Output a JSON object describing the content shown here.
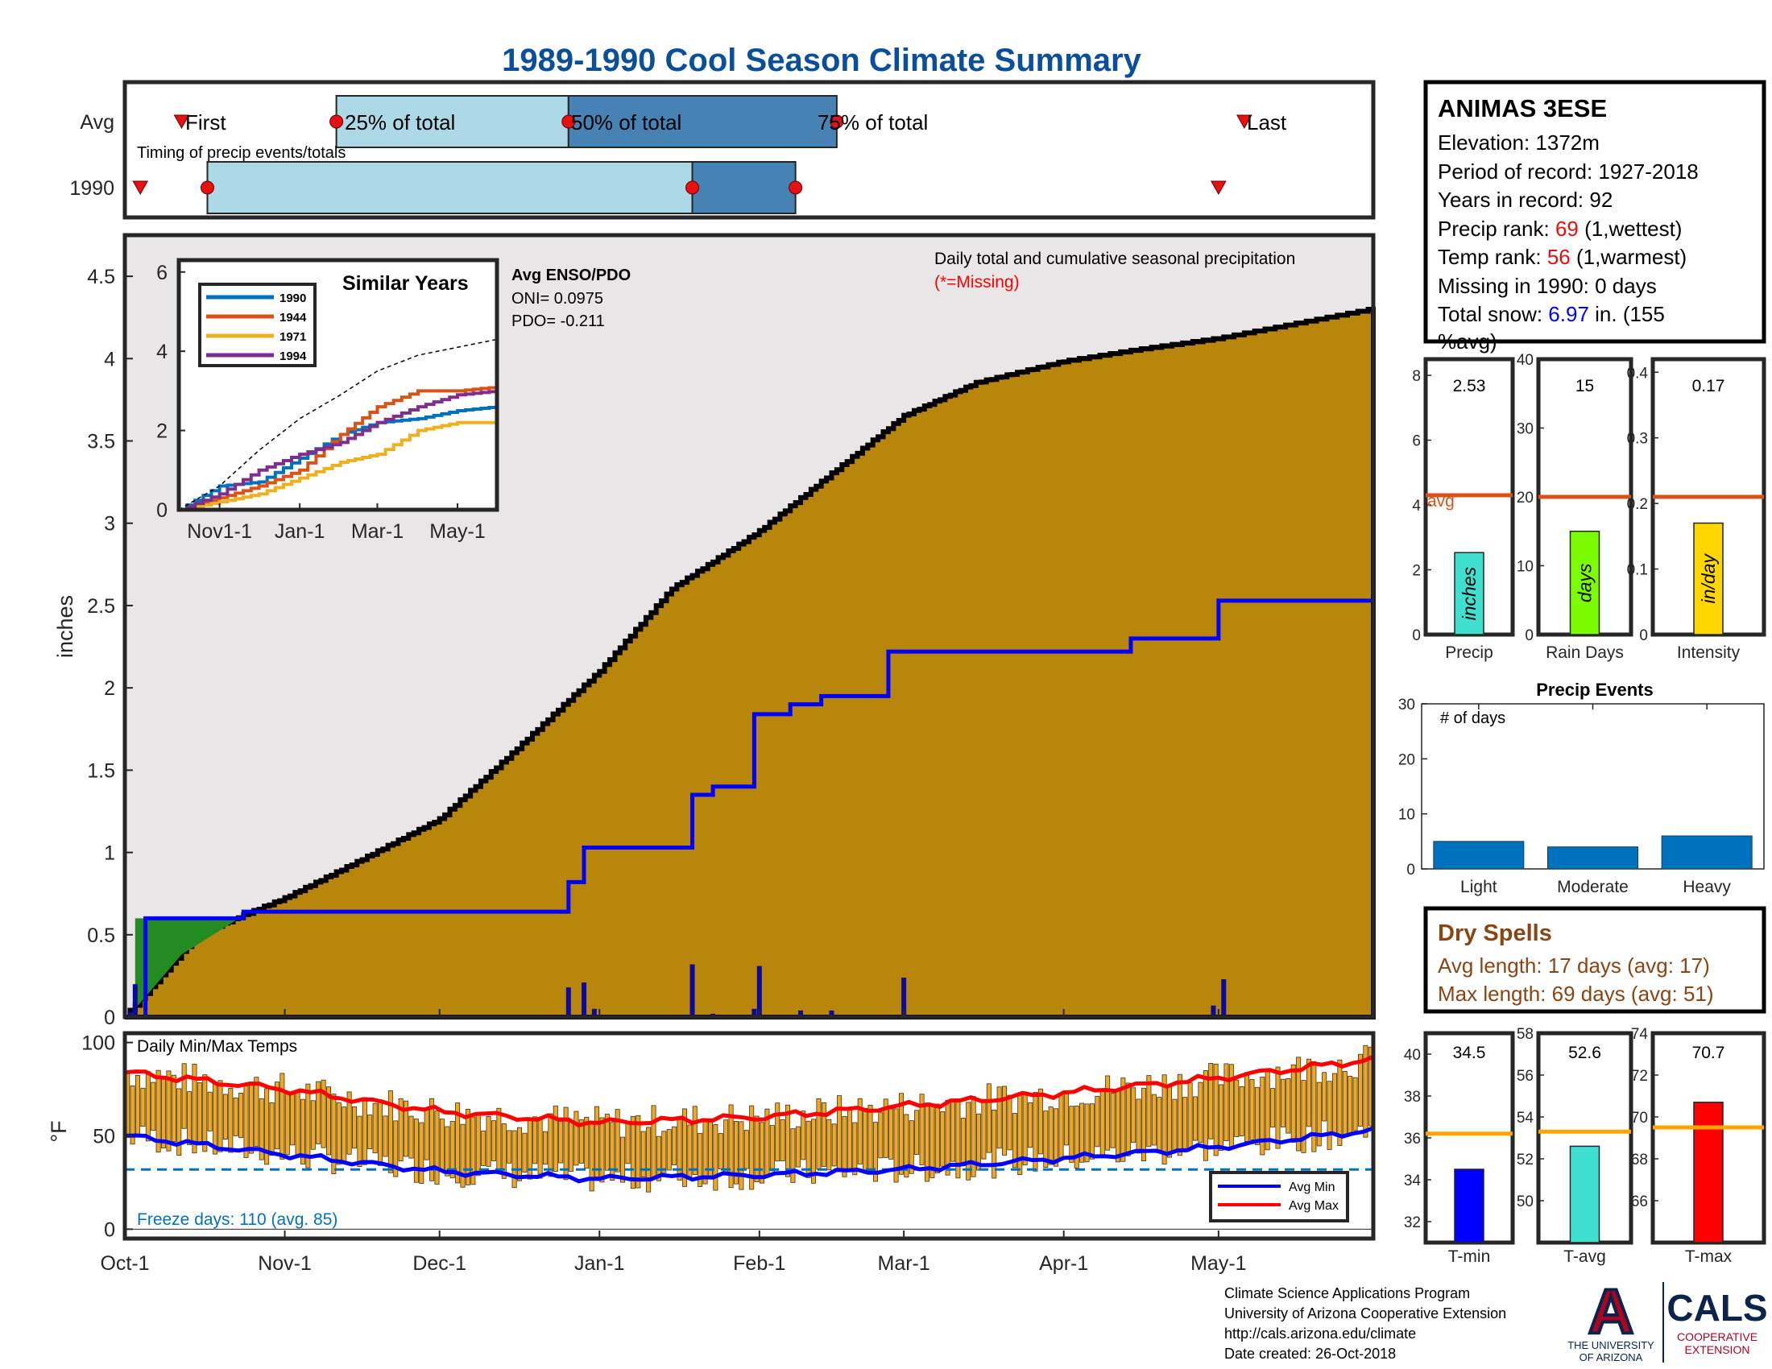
{
  "title": "1989-1990 Cool Season Climate Summary",
  "colors": {
    "title": "#0b4f9c",
    "cumulative_fill": "#b8860b",
    "record_fill": "#e8e6e6",
    "light_blue": "#add8e6",
    "steel_blue": "#4682b4",
    "marker_red": "#e81010",
    "avg_line": "#d95319",
    "temp_bar": "#f3a81c",
    "blue": "#0000ff",
    "red": "#ff0000",
    "event_bar": "#0072bd",
    "dry_spell": "#8b4513",
    "freeze_text": "#0072bd"
  },
  "timing_panel": {
    "row_labels": [
      "Avg",
      "1990"
    ],
    "annotations": [
      "First",
      "25% of total",
      "50% of total",
      "75% of total",
      "Last"
    ],
    "subtitle": "Timing of precip events/totals"
  },
  "station": {
    "name": "ANIMAS 3ESE",
    "elevation": "Elevation: 1372m",
    "period": "Period of record: 1927-2018",
    "years": "Years in record: 92",
    "precip_rank_label": "Precip rank: ",
    "precip_rank": "69",
    "precip_rank_note": " (1,wettest)",
    "temp_rank_label": "Temp rank: ",
    "temp_rank": "56",
    "temp_rank_note": " (1,warmest)",
    "missing": "Missing in 1990: 0 days",
    "snow_label": "Total snow: ",
    "snow_value": "6.97",
    "snow_note": " in. (155",
    "snow_note2": "%avg)"
  },
  "main_plot": {
    "ylabel": "inches",
    "annotation": "Daily total and cumulative seasonal precipitation",
    "missing_note": "(*=Missing)",
    "yticks": [
      "0",
      "0.5",
      "1",
      "1.5",
      "2",
      "2.5",
      "3",
      "3.5",
      "4",
      "4.5"
    ],
    "xticks": [
      "Oct-1",
      "Nov-1",
      "Dec-1",
      "Jan-1",
      "Feb-1",
      "Mar-1",
      "Apr-1",
      "May-1"
    ]
  },
  "inset": {
    "title": "Similar Years",
    "legend": [
      "1990",
      "1944",
      "1971",
      "1994"
    ],
    "yticks": [
      "0",
      "2",
      "4",
      "6"
    ],
    "xticks": [
      "Nov1-1",
      "Jan-1",
      "Mar-1",
      "May-1"
    ]
  },
  "enso": {
    "title": "Avg ENSO/PDO",
    "oni": "ONI= 0.0975",
    "pdo": "PDO= -0.211"
  },
  "temp_plot": {
    "title": "Daily Min/Max Temps",
    "ylabel": "°F",
    "yticks": [
      "0",
      "50",
      "100"
    ],
    "freeze_text": "Freeze days: 110 (avg. 85)",
    "legend": [
      "Avg Min",
      "Avg Max"
    ]
  },
  "summary_bars": {
    "precip": {
      "label": "Precip",
      "value_text": "2.53",
      "unit": "inches",
      "yticks": [
        "0",
        "2",
        "4",
        "6",
        "8"
      ],
      "avg_label": "avg"
    },
    "rain_days": {
      "label": "Rain Days",
      "value_text": "15",
      "unit": "days",
      "yticks": [
        "0",
        "10",
        "20",
        "30",
        "40"
      ]
    },
    "intensity": {
      "label": "Intensity",
      "value_text": "0.17",
      "unit": "in/day",
      "yticks": [
        "0",
        "0.1",
        "0.2",
        "0.3",
        "0.4"
      ]
    }
  },
  "precip_events": {
    "title": "Precip Events",
    "note": "# of days",
    "categories": [
      "Light",
      "Moderate",
      "Heavy"
    ],
    "yticks": [
      "0",
      "10",
      "20",
      "30"
    ]
  },
  "dry_spells": {
    "title": "Dry Spells",
    "avg_length": "Avg length: 17 days (avg: 17)",
    "max_length": "Max length: 69 days (avg: 51)"
  },
  "temp_summary": {
    "tmin": {
      "label": "T-min",
      "value_text": "34.5",
      "yticks": [
        "32",
        "34",
        "36",
        "38",
        "40"
      ]
    },
    "tavg": {
      "label": "T-avg",
      "value_text": "52.6",
      "yticks": [
        "50",
        "52",
        "54",
        "56",
        "58"
      ]
    },
    "tmax": {
      "label": "T-max",
      "value_text": "70.7",
      "yticks": [
        "66",
        "68",
        "70",
        "72",
        "74"
      ]
    }
  },
  "footer": {
    "line1": "Climate Science Applications Program",
    "line2": "University of Arizona Cooperative Extension",
    "line3": "http://cals.arizona.edu/climate",
    "line4": " Date created: 26-Oct-2018"
  },
  "logos": {
    "ua_letter": "A",
    "ua_line1": "THE UNIVERSITY",
    "ua_line2": "OF ARIZONA",
    "cals": "CALS",
    "cals_line1": "COOPERATIVE",
    "cals_line2": "EXTENSION"
  },
  "chart_data": [
    {
      "type": "area",
      "title": "Daily total and cumulative seasonal precipitation",
      "ylabel": "inches",
      "ylim": [
        0,
        4.75
      ],
      "x_range": [
        "Oct-1",
        "May-31"
      ],
      "series": [
        {
          "name": "",
          "x": [
            "Oct-1",
            "Oct-15",
            "Nov-1",
            "Nov-15",
            "Dec-1",
            "Dec-15",
            "Jan-1",
            "Jan-15",
            "Feb-1",
            "Feb-15",
            "Mar-1",
            "Mar-15",
            "Apr-1",
            "Apr-15",
            "May-1",
            "May-31"
          ],
          "y": [
            0.0,
            0.5,
            0.72,
            0.94,
            1.2,
            1.6,
            2.1,
            2.6,
            2.95,
            3.3,
            3.65,
            3.85,
            3.98,
            4.05,
            4.12,
            4.3
          ]
        },
        {
          "name": "",
          "x": [
            "Oct-1",
            "Oct-5",
            "Oct-24",
            "Dec-26",
            "Dec-29",
            "Jan-19",
            "Jan-23",
            "Jan-31",
            "Feb-7",
            "Feb-13",
            "Feb-26",
            "Apr-14",
            "May-1",
            "May-31"
          ],
          "y": [
            0.0,
            0.6,
            0.64,
            0.82,
            1.03,
            1.35,
            1.4,
            1.84,
            1.9,
            1.95,
            2.22,
            2.3,
            2.53,
            2.53
          ]
        }
      ],
      "daily_bars": {
        "x": [
          "Oct-2",
          "Oct-3",
          "Oct-22",
          "Dec-26",
          "Dec-29",
          "Dec-31",
          "Jan-19",
          "Jan-23",
          "Jan-31",
          "Feb-1",
          "Feb-9",
          "Feb-15",
          "Mar-1",
          "Apr-30",
          "May-2"
        ],
        "y": [
          0.03,
          0.2,
          0.01,
          0.18,
          0.21,
          0.05,
          0.32,
          0.02,
          0.05,
          0.31,
          0.04,
          0.04,
          0.24,
          0.07,
          0.23
        ]
      }
    },
    {
      "type": "line",
      "title": "Similar Years",
      "ylim": [
        0,
        6
      ],
      "x": [
        "Oct-1",
        "Nov-1",
        "Dec-1",
        "Jan-1",
        "Feb-1",
        "Mar-1",
        "Apr-1",
        "May-1",
        "May-31"
      ],
      "series": [
        {
          "name": "1990",
          "values": [
            0.0,
            0.6,
            0.7,
            1.3,
            1.9,
            2.2,
            2.3,
            2.5,
            2.6
          ]
        },
        {
          "name": "1944",
          "values": [
            0.0,
            0.3,
            0.6,
            1.0,
            1.9,
            2.6,
            3.0,
            3.0,
            3.1
          ]
        },
        {
          "name": "1971",
          "values": [
            0.0,
            0.2,
            0.4,
            0.8,
            1.2,
            1.4,
            2.0,
            2.2,
            2.2
          ]
        },
        {
          "name": "1994",
          "values": [
            0.0,
            0.4,
            1.0,
            1.4,
            1.7,
            2.2,
            2.6,
            2.9,
            3.0
          ]
        },
        {
          "name": "",
          "values": [
            0.0,
            0.6,
            1.5,
            2.3,
            2.9,
            3.5,
            3.9,
            4.1,
            4.3
          ]
        }
      ]
    },
    {
      "type": "bar",
      "title": "Daily Min/Max Temps",
      "ylabel": "°F",
      "ylim": [
        -5,
        105
      ],
      "series": [
        {
          "name": "Avg Max",
          "x": [
            "Oct-1",
            "Nov-1",
            "Dec-1",
            "Jan-1",
            "Feb-1",
            "Mar-1",
            "Apr-1",
            "May-1",
            "May-31"
          ],
          "values": [
            84,
            75,
            63,
            57,
            60,
            66,
            73,
            81,
            91
          ]
        },
        {
          "name": "Avg Min",
          "x": [
            "Oct-1",
            "Nov-1",
            "Dec-1",
            "Jan-1",
            "Feb-1",
            "Mar-1",
            "Apr-1",
            "May-1",
            "May-31"
          ],
          "values": [
            50,
            40,
            31,
            27,
            29,
            32,
            38,
            44,
            53
          ]
        }
      ],
      "freeze_line": 32
    },
    {
      "type": "bar",
      "categories": [
        "Precip",
        "Rain Days",
        "Intensity"
      ],
      "values": [
        2.53,
        15,
        0.17
      ],
      "averages": [
        4.3,
        20,
        0.21
      ],
      "ylims": [
        [
          0,
          8.5
        ],
        [
          0,
          40
        ],
        [
          0,
          0.42
        ]
      ]
    },
    {
      "type": "bar",
      "title": "Precip Events",
      "categories": [
        "Light",
        "Moderate",
        "Heavy"
      ],
      "values": [
        5,
        4,
        6
      ],
      "ylim": [
        0,
        30
      ]
    },
    {
      "type": "bar",
      "categories": [
        "T-min",
        "T-avg",
        "T-max"
      ],
      "values": [
        34.5,
        52.6,
        70.7
      ],
      "averages": [
        36.2,
        53.3,
        69.5
      ],
      "ylims": [
        [
          31,
          41
        ],
        [
          48,
          58
        ],
        [
          64,
          74
        ]
      ]
    }
  ]
}
